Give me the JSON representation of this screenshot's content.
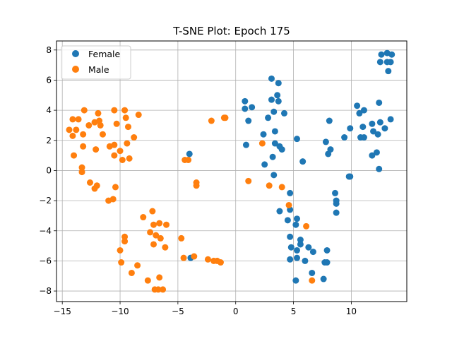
{
  "chart_data": {
    "type": "scatter",
    "title": "T-SNE Plot: Epoch 175",
    "xlabel": "",
    "ylabel": "",
    "xlim": [
      -15.5,
      14.8
    ],
    "ylim": [
      -8.7,
      8.6
    ],
    "xticks": [
      -15,
      -10,
      -5,
      0,
      5,
      10
    ],
    "yticks": [
      -8,
      -6,
      -4,
      -2,
      0,
      2,
      4,
      6,
      8
    ],
    "grid": true,
    "legend": "top-left",
    "series": [
      {
        "name": "Female",
        "color": "#1f77b4",
        "points": [
          [
            -4.0,
            1.1
          ],
          [
            -3.9,
            -5.8
          ],
          [
            0.8,
            4.6
          ],
          [
            0.8,
            4.1
          ],
          [
            1.4,
            4.2
          ],
          [
            1.1,
            3.3
          ],
          [
            0.9,
            1.7
          ],
          [
            3.1,
            6.1
          ],
          [
            3.7,
            5.8
          ],
          [
            3.6,
            5.0
          ],
          [
            3.7,
            4.6
          ],
          [
            3.1,
            4.7
          ],
          [
            3.3,
            3.9
          ],
          [
            4.2,
            3.8
          ],
          [
            2.8,
            3.5
          ],
          [
            3.4,
            2.6
          ],
          [
            2.4,
            2.4
          ],
          [
            3.4,
            1.8
          ],
          [
            3.8,
            1.6
          ],
          [
            4.0,
            1.4
          ],
          [
            3.2,
            0.9
          ],
          [
            2.5,
            0.4
          ],
          [
            3.3,
            -0.3
          ],
          [
            5.3,
            2.1
          ],
          [
            5.8,
            0.6
          ],
          [
            4.7,
            -1.5
          ],
          [
            4.7,
            -2.6
          ],
          [
            3.8,
            -2.7
          ],
          [
            5.3,
            -3.2
          ],
          [
            4.5,
            -3.3
          ],
          [
            5.2,
            -3.6
          ],
          [
            4.7,
            -4.4
          ],
          [
            5.6,
            -4.6
          ],
          [
            5.6,
            -4.9
          ],
          [
            4.8,
            -5.1
          ],
          [
            5.3,
            -5.3
          ],
          [
            6.3,
            -5.1
          ],
          [
            6.7,
            -5.4
          ],
          [
            7.9,
            -5.3
          ],
          [
            4.7,
            -5.9
          ],
          [
            5.3,
            -5.8
          ],
          [
            6.0,
            -6.0
          ],
          [
            7.7,
            -6.1
          ],
          [
            7.9,
            -6.1
          ],
          [
            6.6,
            -6.8
          ],
          [
            5.2,
            -7.3
          ],
          [
            7.6,
            -7.2
          ],
          [
            8.1,
            3.3
          ],
          [
            7.8,
            1.9
          ],
          [
            8.2,
            1.4
          ],
          [
            8.0,
            1.1
          ],
          [
            9.4,
            2.2
          ],
          [
            9.9,
            2.8
          ],
          [
            9.9,
            -0.4
          ],
          [
            9.8,
            -0.4
          ],
          [
            8.6,
            -1.5
          ],
          [
            8.7,
            -2.0
          ],
          [
            8.7,
            -2.2
          ],
          [
            8.7,
            -2.8
          ],
          [
            10.5,
            4.3
          ],
          [
            10.7,
            3.8
          ],
          [
            11.1,
            4.0
          ],
          [
            11.0,
            2.9
          ],
          [
            11.8,
            3.1
          ],
          [
            12.5,
            3.2
          ],
          [
            12.9,
            2.8
          ],
          [
            11.9,
            2.6
          ],
          [
            12.3,
            2.4
          ],
          [
            10.8,
            2.2
          ],
          [
            11.1,
            2.2
          ],
          [
            12.2,
            1.2
          ],
          [
            11.8,
            1.0
          ],
          [
            12.4,
            0.1
          ],
          [
            12.4,
            4.5
          ],
          [
            13.4,
            3.4
          ],
          [
            12.6,
            7.7
          ],
          [
            13.1,
            7.8
          ],
          [
            13.5,
            7.7
          ],
          [
            12.5,
            7.2
          ],
          [
            13.1,
            7.2
          ],
          [
            13.4,
            7.2
          ],
          [
            13.2,
            6.6
          ]
        ]
      },
      {
        "name": "Male",
        "color": "#ff7f0e",
        "points": [
          [
            -14.4,
            2.7
          ],
          [
            -14.1,
            3.4
          ],
          [
            -13.6,
            3.4
          ],
          [
            -13.1,
            4.0
          ],
          [
            -13.8,
            2.7
          ],
          [
            -14.1,
            2.3
          ],
          [
            -13.2,
            2.4
          ],
          [
            -14.0,
            1.0
          ],
          [
            -13.2,
            1.6
          ],
          [
            -13.3,
            0.2
          ],
          [
            -13.3,
            -0.1
          ],
          [
            -12.7,
            3.0
          ],
          [
            -12.2,
            3.2
          ],
          [
            -11.9,
            3.8
          ],
          [
            -11.8,
            3.3
          ],
          [
            -11.7,
            3.0
          ],
          [
            -11.5,
            2.4
          ],
          [
            -12.1,
            1.4
          ],
          [
            -12.6,
            -0.8
          ],
          [
            -12.2,
            -1.2
          ],
          [
            -12.0,
            -1.0
          ],
          [
            -11.0,
            -2.0
          ],
          [
            -10.6,
            -1.9
          ],
          [
            -10.5,
            4.0
          ],
          [
            -9.6,
            4.0
          ],
          [
            -9.5,
            3.5
          ],
          [
            -10.3,
            3.1
          ],
          [
            -9.3,
            2.9
          ],
          [
            -10.9,
            1.6
          ],
          [
            -10.5,
            1.7
          ],
          [
            -10.0,
            1.3
          ],
          [
            -9.4,
            1.8
          ],
          [
            -10.5,
            1.0
          ],
          [
            -9.8,
            0.7
          ],
          [
            -9.2,
            0.8
          ],
          [
            -10.4,
            -1.1
          ],
          [
            -8.8,
            2.2
          ],
          [
            -8.4,
            3.7
          ],
          [
            -10.0,
            -5.3
          ],
          [
            -9.6,
            -4.4
          ],
          [
            -9.6,
            -4.7
          ],
          [
            -9.9,
            -6.1
          ],
          [
            -9.0,
            -6.8
          ],
          [
            -8.5,
            -6.3
          ],
          [
            -8.0,
            -3.1
          ],
          [
            -7.6,
            -7.3
          ],
          [
            -7.2,
            -2.7
          ],
          [
            -7.1,
            -3.6
          ],
          [
            -7.4,
            -4.1
          ],
          [
            -6.9,
            -4.3
          ],
          [
            -6.6,
            -3.5
          ],
          [
            -6.5,
            -4.5
          ],
          [
            -7.1,
            -4.9
          ],
          [
            -6.0,
            -3.6
          ],
          [
            -6.1,
            -5.1
          ],
          [
            -7.0,
            -7.9
          ],
          [
            -6.7,
            -7.9
          ],
          [
            -6.3,
            -7.9
          ],
          [
            -6.6,
            -7.1
          ],
          [
            -4.7,
            -4.5
          ],
          [
            -4.4,
            0.7
          ],
          [
            -4.1,
            0.7
          ],
          [
            -4.5,
            -5.8
          ],
          [
            -3.6,
            -5.7
          ],
          [
            -3.4,
            -0.8
          ],
          [
            -3.4,
            -1.0
          ],
          [
            -2.4,
            -5.9
          ],
          [
            -1.9,
            -6.0
          ],
          [
            -1.6,
            -6.0
          ],
          [
            -1.3,
            -6.1
          ],
          [
            -2.1,
            3.3
          ],
          [
            -1.0,
            3.5
          ],
          [
            -0.9,
            3.5
          ],
          [
            1.1,
            -0.7
          ],
          [
            2.3,
            1.8
          ],
          [
            2.9,
            -1.0
          ],
          [
            4.0,
            -1.1
          ],
          [
            4.6,
            -2.3
          ],
          [
            6.1,
            -3.7
          ],
          [
            6.6,
            -7.3
          ]
        ]
      }
    ]
  }
}
